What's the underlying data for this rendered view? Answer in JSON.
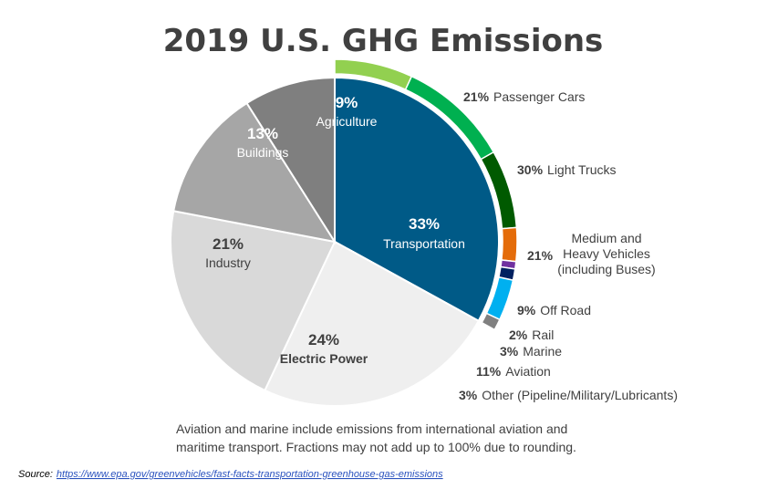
{
  "chart_data": {
    "type": "pie",
    "title": "2019 U.S. GHG Emissions",
    "slices": [
      {
        "label": "Transportation",
        "value": 33,
        "pct_text": "33%",
        "color": "#005a87"
      },
      {
        "label": "Electric Power",
        "value": 24,
        "pct_text": "24%",
        "color": "#efefef"
      },
      {
        "label": "Industry",
        "value": 21,
        "pct_text": "21%",
        "color": "#d9d9d9"
      },
      {
        "label": "Buildings",
        "value": 13,
        "pct_text": "13%",
        "color": "#a6a6a6"
      },
      {
        "label": "Agriculture",
        "value": 9,
        "pct_text": "9%",
        "color": "#7f7f7f"
      }
    ],
    "transportation_breakdown": [
      {
        "pct_text": "21%",
        "label": "Passenger Cars",
        "value": 21,
        "color": "#92d050"
      },
      {
        "pct_text": "30%",
        "label": "Light Trucks",
        "value": 30,
        "color": "#00b050"
      },
      {
        "pct_text": "21%",
        "label": "Medium and Heavy Vehicles (including Buses)",
        "label_lines": [
          "Medium and",
          "Heavy Vehicles",
          "(including Buses)"
        ],
        "value": 21,
        "color": "#005a00"
      },
      {
        "pct_text": "9%",
        "label": "Off Road",
        "value": 9,
        "color": "#e46c0a"
      },
      {
        "pct_text": "2%",
        "label": "Rail",
        "value": 2,
        "color": "#7030a0"
      },
      {
        "pct_text": "3%",
        "label": "Marine",
        "value": 3,
        "color": "#002060"
      },
      {
        "pct_text": "11%",
        "label": "Aviation",
        "value": 11,
        "color": "#00b0f0"
      },
      {
        "pct_text": "3%",
        "label": "Other (Pipeline/Military/Lubricants)",
        "value": 3,
        "color": "#808080"
      }
    ]
  },
  "note": {
    "line1": "Aviation and marine include emissions from international aviation and",
    "line2": "maritime transport. Fractions may not add up to 100% due to rounding."
  },
  "source": {
    "label": "Source:",
    "link_text": "https://www.epa.gov/greenvehicles/fast-facts-transportation-greenhouse-gas-emissions"
  }
}
